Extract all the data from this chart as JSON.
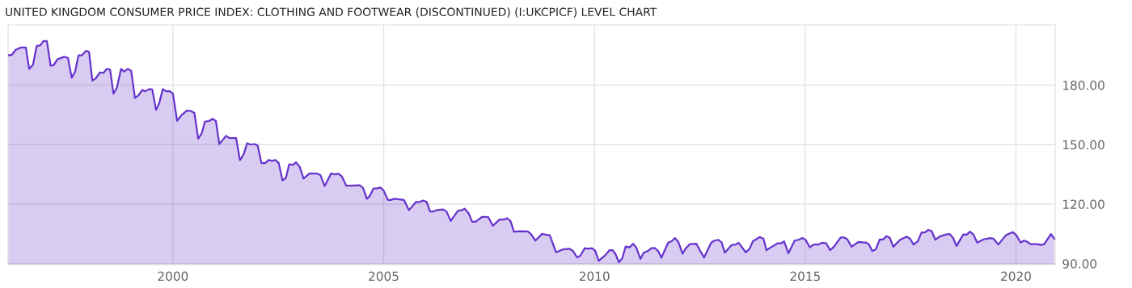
{
  "chart_data": {
    "type": "area",
    "title": "UNITED KINGDOM CONSUMER PRICE INDEX: CLOTHING AND FOOTWEAR (DISCONTINUED) (I:UKCPICF) LEVEL CHART",
    "series": [
      {
        "color": "#6633cc",
        "x": [
          1996.09,
          1996.18,
          1996.27,
          1996.4,
          1996.51,
          1996.59,
          1996.68,
          1996.77,
          1996.85,
          1996.93,
          1997.01,
          1997.1,
          1997.17,
          1997.26,
          1997.42,
          1997.51,
          1997.6,
          1997.68,
          1997.76,
          1997.84,
          1997.94,
          1998.01,
          1998.09,
          1998.17,
          1998.27,
          1998.35,
          1998.43,
          1998.51,
          1998.59,
          1998.67,
          1998.77,
          1998.84,
          1998.93,
          1999.01,
          1999.1,
          1999.18,
          1999.27,
          1999.34,
          1999.44,
          1999.51,
          1999.6,
          1999.67,
          1999.76,
          1999.84,
          1999.92,
          2000.0,
          2000.1,
          2000.21,
          2000.33,
          2000.43,
          2000.51,
          2000.6,
          2000.68,
          2000.76,
          2000.86,
          2000.94,
          2001.02,
          2001.1,
          2001.18,
          2001.26,
          2001.34,
          2001.5,
          2001.59,
          2001.68,
          2001.76,
          2001.84,
          2001.93,
          2002.01,
          2002.1,
          2002.19,
          2002.27,
          2002.35,
          2002.43,
          2002.51,
          2002.6,
          2002.68,
          2002.76,
          2002.85,
          2002.92,
          2003.01,
          2003.1,
          2003.24,
          2003.42,
          2003.5,
          2003.6,
          2003.75,
          2003.84,
          2003.93,
          2004.01,
          2004.11,
          2004.23,
          2004.43,
          2004.51,
          2004.6,
          2004.67,
          2004.76,
          2004.84,
          2004.92,
          2005.0,
          2005.1,
          2005.17,
          2005.26,
          2005.48,
          2005.6,
          2005.77,
          2005.85,
          2005.94,
          2006.02,
          2006.1,
          2006.19,
          2006.26,
          2006.41,
          2006.49,
          2006.59,
          2006.76,
          2006.84,
          2006.92,
          2007.02,
          2007.1,
          2007.18,
          2007.34,
          2007.48,
          2007.59,
          2007.75,
          2007.85,
          2007.93,
          2008.01,
          2008.09,
          2008.26,
          2008.42,
          2008.49,
          2008.6,
          2008.76,
          2008.84,
          2008.94,
          2009.09,
          2009.26,
          2009.41,
          2009.49,
          2009.59,
          2009.67,
          2009.77,
          2009.86,
          2009.94,
          2010.02,
          2010.1,
          2010.25,
          2010.36,
          2010.43,
          2010.5,
          2010.58,
          2010.66,
          2010.74,
          2010.83,
          2010.92,
          2010.99,
          2011.09,
          2011.17,
          2011.27,
          2011.35,
          2011.43,
          2011.51,
          2011.59,
          2011.75,
          2011.83,
          2011.91,
          2011.99,
          2012.09,
          2012.16,
          2012.26,
          2012.42,
          2012.5,
          2012.6,
          2012.77,
          2012.85,
          2012.94,
          2013.02,
          2013.09,
          2013.25,
          2013.35,
          2013.42,
          2013.59,
          2013.68,
          2013.76,
          2013.92,
          2014.01,
          2014.08,
          2014.21,
          2014.34,
          2014.42,
          2014.5,
          2014.6,
          2014.75,
          2014.84,
          2014.93,
          2015.01,
          2015.11,
          2015.2,
          2015.3,
          2015.4,
          2015.5,
          2015.59,
          2015.68,
          2015.84,
          2015.92,
          2016.0,
          2016.1,
          2016.26,
          2016.45,
          2016.51,
          2016.59,
          2016.67,
          2016.77,
          2016.85,
          2016.93,
          2017.01,
          2017.09,
          2017.25,
          2017.41,
          2017.49,
          2017.57,
          2017.67,
          2017.76,
          2017.84,
          2017.92,
          2018.0,
          2018.09,
          2018.18,
          2018.34,
          2018.43,
          2018.51,
          2018.59,
          2018.75,
          2018.83,
          2018.91,
          2018.99,
          2019.08,
          2019.23,
          2019.39,
          2019.47,
          2019.58,
          2019.76,
          2019.92,
          2020.01,
          2020.11,
          2020.19,
          2020.25,
          2020.35,
          2020.51,
          2020.59,
          2020.67,
          2020.83,
          2020.91
        ],
        "values": [
          195.0,
          195.3,
          197.8,
          199.0,
          199.0,
          188.2,
          190.2,
          199.8,
          200.0,
          202.2,
          202.2,
          189.8,
          190.0,
          193.0,
          194.3,
          193.7,
          183.7,
          186.8,
          195.0,
          195.0,
          197.3,
          196.8,
          182.3,
          183.4,
          186.4,
          186.1,
          188.2,
          187.8,
          175.7,
          178.6,
          188.2,
          186.8,
          188.2,
          187.2,
          173.5,
          174.8,
          177.5,
          176.9,
          178.0,
          177.8,
          167.5,
          170.5,
          178.0,
          176.9,
          177.0,
          175.7,
          162.0,
          165.0,
          167.1,
          166.9,
          166.0,
          153.0,
          155.5,
          161.6,
          161.9,
          163.0,
          161.9,
          150.3,
          152.3,
          154.4,
          153.3,
          153.3,
          142.1,
          145.2,
          150.7,
          150.0,
          150.3,
          149.6,
          140.7,
          140.7,
          142.2,
          141.8,
          142.2,
          140.7,
          132.0,
          133.2,
          140.1,
          139.8,
          141.1,
          138.7,
          132.9,
          135.4,
          135.4,
          134.6,
          129.1,
          135.4,
          135.0,
          135.3,
          133.9,
          129.3,
          129.3,
          129.5,
          128.2,
          122.7,
          124.1,
          127.9,
          127.9,
          128.4,
          126.8,
          122.1,
          122.1,
          122.7,
          122.1,
          117.0,
          121.1,
          121.1,
          121.8,
          121.1,
          116.3,
          116.3,
          117.0,
          117.3,
          116.3,
          111.5,
          116.6,
          116.9,
          117.7,
          115.2,
          111.1,
          111.1,
          113.6,
          113.5,
          109.1,
          112.2,
          112.2,
          112.9,
          111.4,
          106.1,
          106.3,
          106.2,
          105.0,
          101.6,
          105.0,
          104.6,
          104.3,
          95.7,
          97.2,
          97.5,
          96.4,
          93.1,
          94.1,
          97.8,
          97.5,
          97.8,
          96.5,
          91.4,
          94.1,
          96.8,
          96.8,
          94.8,
          90.7,
          92.7,
          98.6,
          98.2,
          100.0,
          98.2,
          92.4,
          95.5,
          96.4,
          97.8,
          97.9,
          96.4,
          93.0,
          100.6,
          101.3,
          102.9,
          100.9,
          95.0,
          97.5,
          99.8,
          100.0,
          96.8,
          93.1,
          100.6,
          101.6,
          102.0,
          100.6,
          95.5,
          99.3,
          99.6,
          100.5,
          95.7,
          97.5,
          101.3,
          103.4,
          102.5,
          96.8,
          98.5,
          100.2,
          100.2,
          101.2,
          95.2,
          101.6,
          102.0,
          102.9,
          102.0,
          98.2,
          99.6,
          99.6,
          100.5,
          100.2,
          96.8,
          98.5,
          103.2,
          103.2,
          102.2,
          98.5,
          100.9,
          100.5,
          99.8,
          96.4,
          97.1,
          102.2,
          102.2,
          103.9,
          102.9,
          98.5,
          102.0,
          103.6,
          102.5,
          99.6,
          101.2,
          105.7,
          105.7,
          107.0,
          106.4,
          102.0,
          103.6,
          104.7,
          104.9,
          102.9,
          98.9,
          104.7,
          104.6,
          106.1,
          104.7,
          100.6,
          102.2,
          102.9,
          102.5,
          99.6,
          104.3,
          105.9,
          104.3,
          100.6,
          101.6,
          101.2,
          99.8,
          99.8,
          99.4,
          99.8,
          104.9,
          102.5
        ]
      }
    ],
    "xlim": [
      1996.09,
      2020.93
    ],
    "ylim": [
      89.5,
      210.3
    ],
    "xticks": [
      2000,
      2005,
      2010,
      2015,
      2020
    ],
    "yticks": [
      {
        "value": 90,
        "label": "90.00"
      },
      {
        "value": 120,
        "label": "120.00"
      },
      {
        "value": 150,
        "label": "150.00"
      },
      {
        "value": 180,
        "label": "180.00"
      }
    ],
    "grid": true
  }
}
